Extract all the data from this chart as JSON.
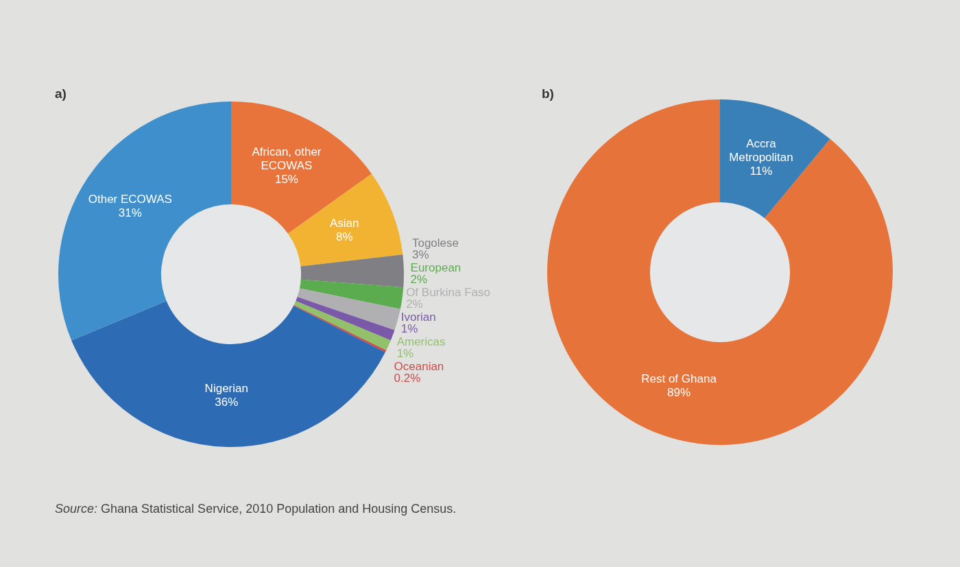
{
  "chart_data": [
    {
      "type": "donut",
      "title": "a)",
      "categories": [
        "African, other ECOWAS",
        "Asian",
        "Togolese",
        "European",
        "Of Burkina Faso",
        "Ivorian",
        "Americas",
        "Oceanian",
        "Nigerian",
        "Other ECOWAS"
      ],
      "values": [
        15,
        8,
        3,
        2,
        2,
        1,
        1,
        0.2,
        36,
        31
      ],
      "colors": [
        "#e8743b",
        "#f3b332",
        "#7f7f84",
        "#5aac4e",
        "#b0b0b3",
        "#7a5aa8",
        "#93c16b",
        "#cc4b4b",
        "#2e6bb5",
        "#3e8fcb"
      ],
      "value_labels": [
        "15%",
        "8%",
        "3%",
        "2%",
        "2%",
        "1%",
        "1%",
        "0.2%",
        "36%",
        "31%"
      ],
      "annotations": [
        "Source: Ghana Statistical Service, 2010 Population and Housing Census."
      ]
    },
    {
      "type": "donut",
      "title": "b)",
      "categories": [
        "Accra Metropolitan",
        "Rest of Ghana"
      ],
      "values": [
        11,
        89
      ],
      "colors": [
        "#3a80b8",
        "#e6743a"
      ],
      "value_labels": [
        "11%",
        "89%"
      ]
    }
  ]
}
